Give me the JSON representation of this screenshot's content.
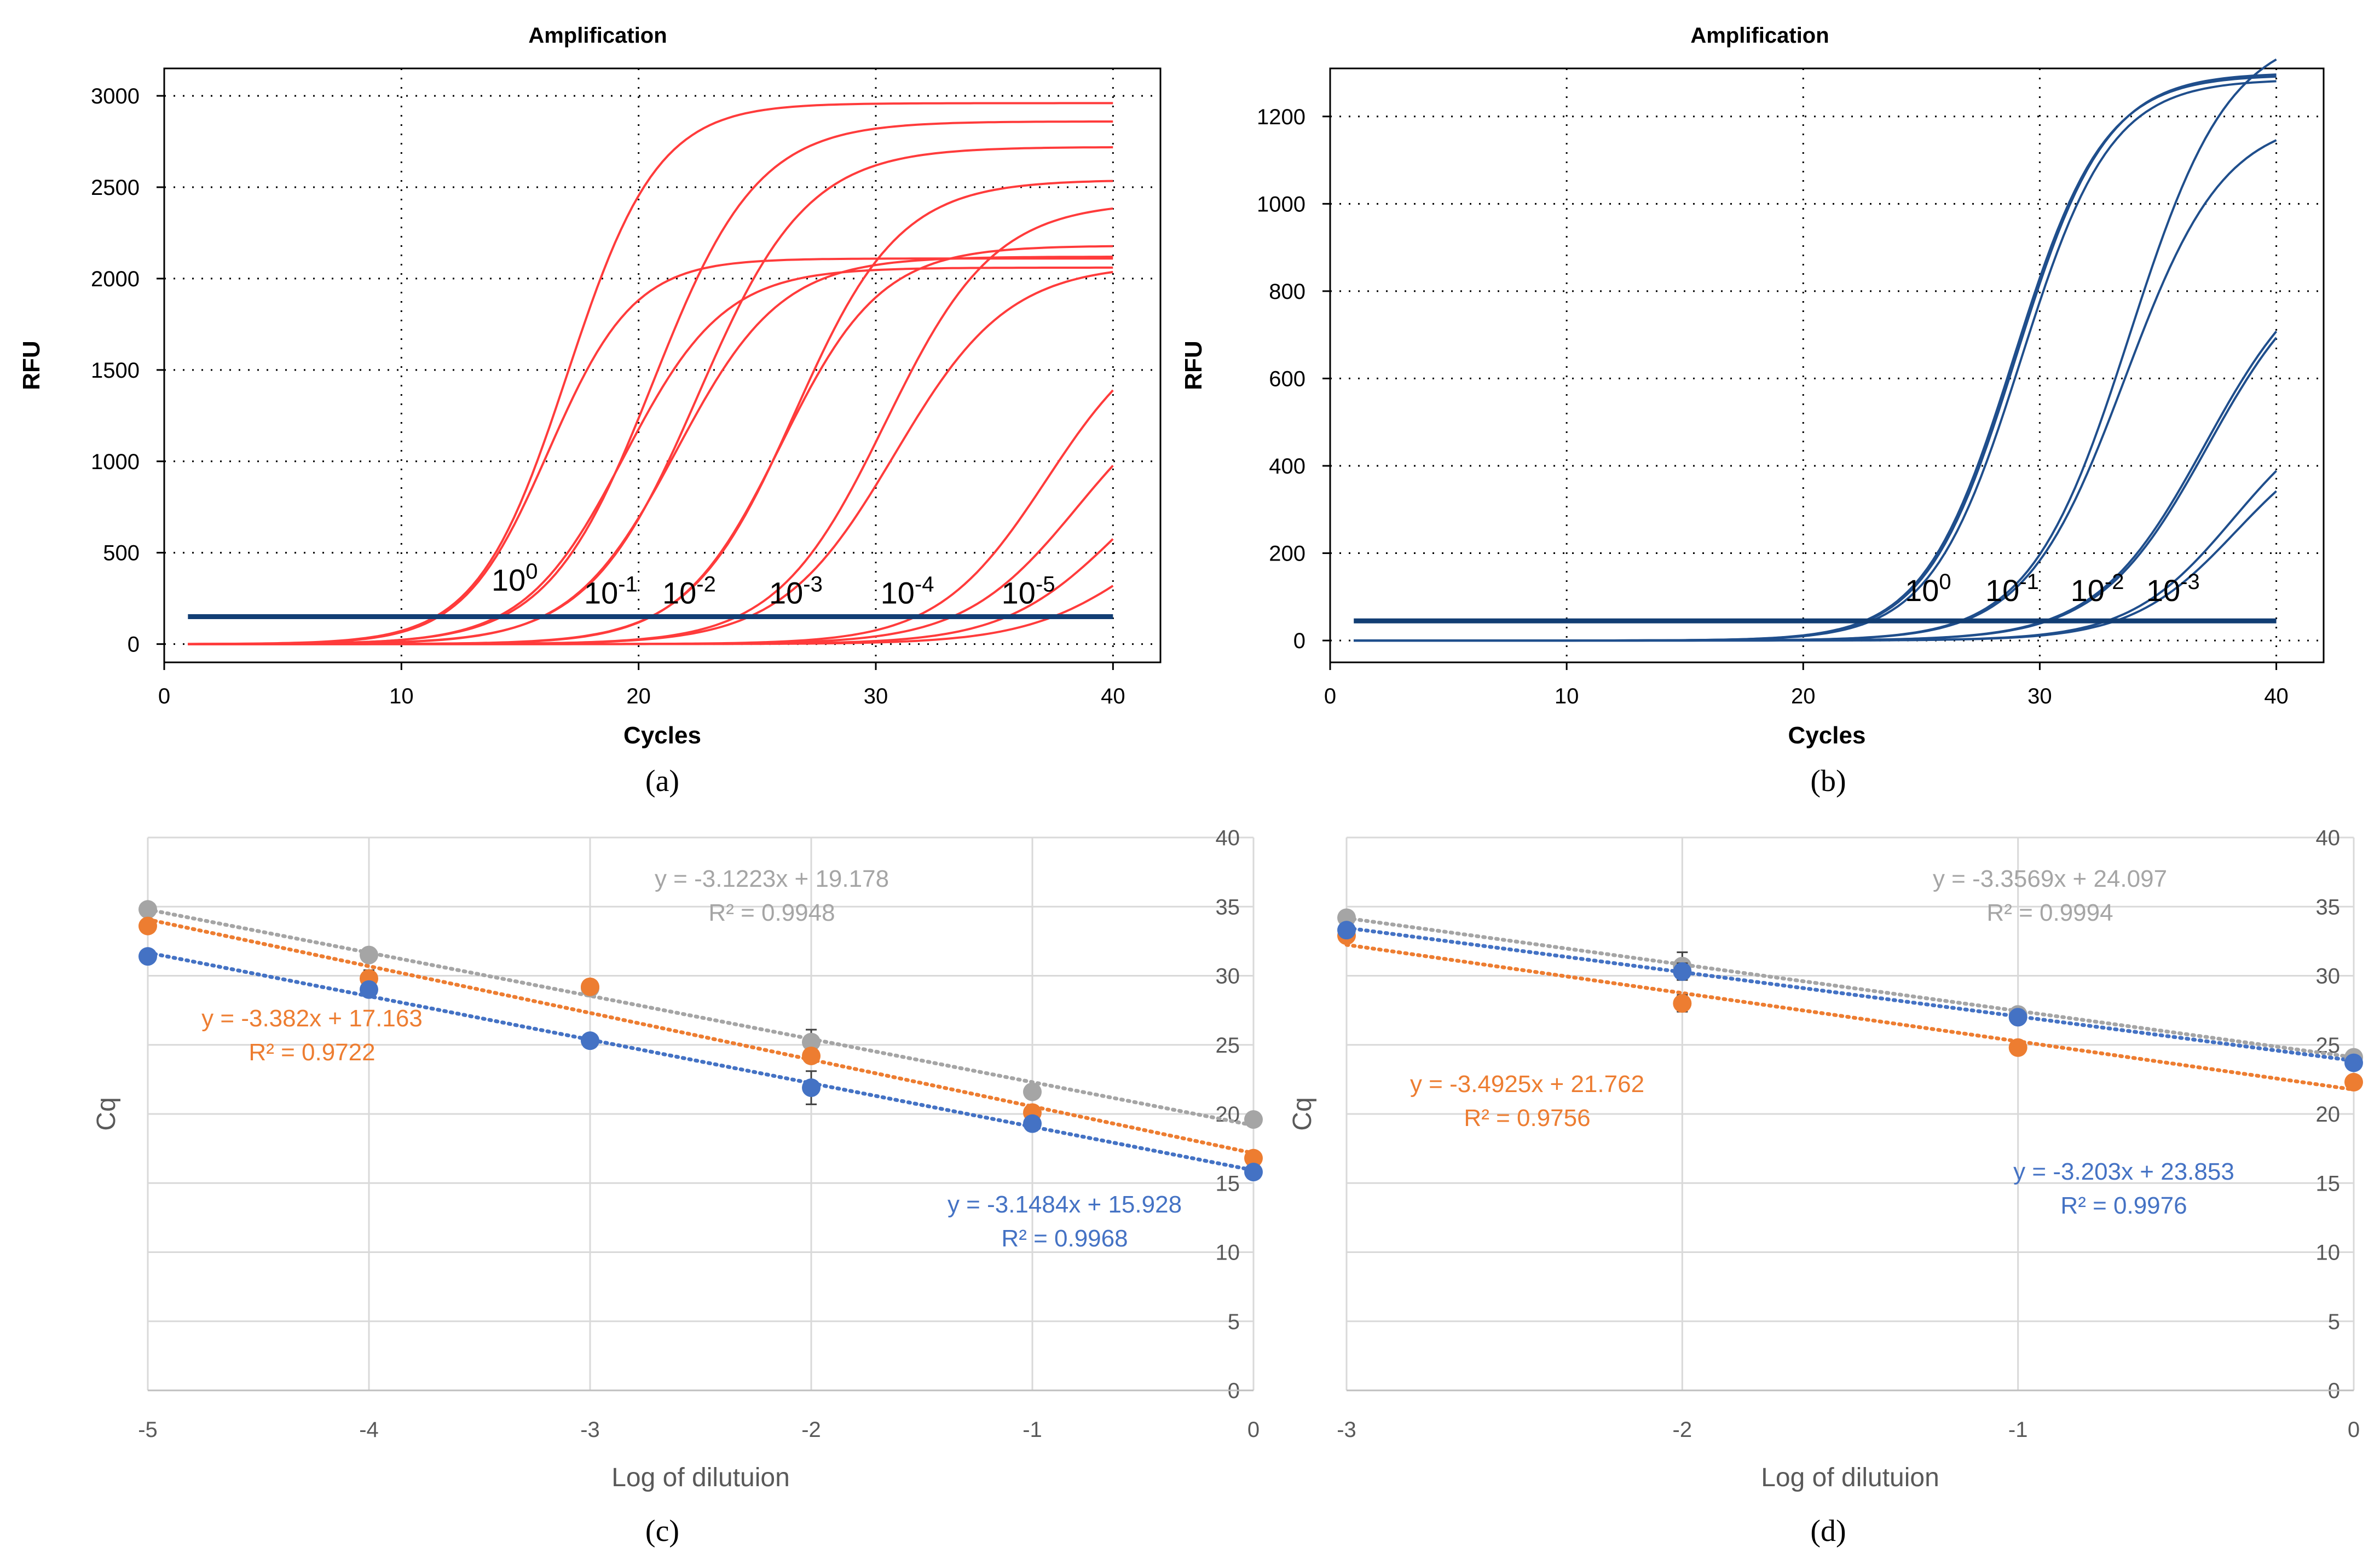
{
  "chart_data": [
    {
      "type": "line",
      "panel_label": "(a)",
      "title": "Amplification",
      "xlabel": "Cycles",
      "ylabel": "RFU",
      "xlim": [
        0,
        42
      ],
      "ylim": [
        -100,
        3150
      ],
      "xticks": [
        "0",
        "10",
        "20",
        "30",
        "40"
      ],
      "yticks": [
        "0",
        "500",
        "1000",
        "1500",
        "2000",
        "2500",
        "3000"
      ],
      "grid": "dotted",
      "color": "#ff3b3b",
      "threshold": {
        "value": 150,
        "color": "#123e74"
      },
      "series": [
        {
          "name": "10^0 rep1",
          "params": [
            2960,
            17.0,
            1.9
          ]
        },
        {
          "name": "10^0 rep2",
          "params": [
            2110,
            16.2,
            1.8
          ]
        },
        {
          "name": "10^-1 rep1",
          "params": [
            2860,
            20.6,
            2.2
          ]
        },
        {
          "name": "10^-1 rep2",
          "params": [
            2060,
            19.4,
            2.1
          ]
        },
        {
          "name": "10^-2 rep1",
          "params": [
            2720,
            22.5,
            2.3
          ]
        },
        {
          "name": "10^-2 rep2",
          "params": [
            2120,
            21.6,
            2.2
          ]
        },
        {
          "name": "10^-3 rep1",
          "params": [
            2540,
            26.6,
            2.2
          ]
        },
        {
          "name": "10^-3 rep2",
          "params": [
            2180,
            26.0,
            2.1
          ]
        },
        {
          "name": "10^-4 rep1",
          "params": [
            2420,
            30.4,
            2.3
          ]
        },
        {
          "name": "10^-4 rep2",
          "params": [
            2080,
            30.8,
            2.4
          ]
        },
        {
          "name": "10^-5 rep1",
          "params": [
            1800,
            37.2,
            2.3
          ]
        },
        {
          "name": "10^-5 rep2",
          "params": [
            1500,
            38.5,
            2.4
          ]
        },
        {
          "name": "10^-5 rep3",
          "params": [
            1200,
            40.2,
            2.4
          ]
        },
        {
          "name": "10^-5 rep4",
          "params": [
            900,
            41.5,
            2.5
          ]
        }
      ],
      "annotations": [
        {
          "base": "10",
          "exp": "0",
          "x": 13.8,
          "y": 220
        },
        {
          "base": "10",
          "exp": "-1",
          "x": 17.7,
          "y": 150
        },
        {
          "base": "10",
          "exp": "-2",
          "x": 21.0,
          "y": 150
        },
        {
          "base": "10",
          "exp": "-3",
          "x": 25.5,
          "y": 150
        },
        {
          "base": "10",
          "exp": "-4",
          "x": 30.2,
          "y": 150
        },
        {
          "base": "10",
          "exp": "-5",
          "x": 35.3,
          "y": 150
        }
      ]
    },
    {
      "type": "line",
      "panel_label": "(b)",
      "title": "Amplification",
      "xlabel": "Cycles",
      "ylabel": "RFU",
      "xlim": [
        0,
        42
      ],
      "ylim": [
        -50,
        1310
      ],
      "xticks": [
        "0",
        "10",
        "20",
        "30",
        "40"
      ],
      "yticks": [
        "0",
        "200",
        "400",
        "600",
        "800",
        "1000",
        "1200"
      ],
      "grid": "dotted",
      "color": "#1f4e8c",
      "threshold": {
        "value": 45,
        "color": "#123e74"
      },
      "series": [
        {
          "name": "10^0 rep1",
          "params": [
            1300,
            29.0,
            1.9
          ]
        },
        {
          "name": "10^0 rep2",
          "params": [
            1285,
            29.2,
            1.9
          ]
        },
        {
          "name": "10^0 rep3",
          "params": [
            1295,
            28.9,
            1.9
          ]
        },
        {
          "name": "10^-1 rep1",
          "params": [
            1400,
            33.8,
            2.1
          ]
        },
        {
          "name": "10^-1 rep2",
          "params": [
            1200,
            33.6,
            2.1
          ]
        },
        {
          "name": "10^-2 rep1",
          "params": [
            900,
            37.0,
            2.3
          ]
        },
        {
          "name": "10^-2 rep2",
          "params": [
            890,
            37.1,
            2.3
          ]
        },
        {
          "name": "10^-3 rep1",
          "params": [
            560,
            38.2,
            2.2
          ]
        },
        {
          "name": "10^-3 rep2",
          "params": [
            500,
            38.3,
            2.2
          ]
        }
      ],
      "annotations": [
        {
          "base": "10",
          "exp": "0",
          "x": 24.3,
          "y": 60
        },
        {
          "base": "10",
          "exp": "-1",
          "x": 27.7,
          "y": 60
        },
        {
          "base": "10",
          "exp": "-2",
          "x": 31.3,
          "y": 60
        },
        {
          "base": "10",
          "exp": "-3",
          "x": 34.5,
          "y": 60
        }
      ]
    },
    {
      "type": "scatter",
      "panel_label": "(c)",
      "xlabel": "Log of dilutuion",
      "ylabel": "Cq",
      "xlim": [
        -5,
        0
      ],
      "ylim": [
        0,
        40
      ],
      "xticks": [
        "-5",
        "-4",
        "-3",
        "-2",
        "-1",
        "0"
      ],
      "yticks": [
        "0",
        "5",
        "10",
        "15",
        "20",
        "25",
        "30",
        "35",
        "40"
      ],
      "grid": "light-solid",
      "series": [
        {
          "name": "grey",
          "color": "#a5a5a5",
          "x": [
            -5,
            -4,
            -3,
            -2,
            -1,
            0
          ],
          "y": [
            34.8,
            31.5,
            29.1,
            25.2,
            21.6,
            19.6
          ],
          "err": [
            0.3,
            0.3,
            0.5,
            0.9,
            0.3,
            0.2
          ],
          "fit": {
            "slope": -3.1223,
            "intercept": 19.178
          },
          "equation": "y = -3.1223x + 19.178",
          "r2": "R² = 0.9948"
        },
        {
          "name": "orange",
          "color": "#ed7d31",
          "x": [
            -5,
            -4,
            -3,
            -2,
            -1,
            0
          ],
          "y": [
            33.6,
            29.8,
            29.2,
            24.2,
            20.1,
            16.8
          ],
          "err": [
            0.2,
            0.6,
            0.2,
            0.5,
            0.3,
            0.2
          ],
          "fit": {
            "slope": -3.382,
            "intercept": 17.163
          },
          "equation": "y = -3.382x + 17.163",
          "r2": "R² = 0.9722"
        },
        {
          "name": "blue",
          "color": "#4472c4",
          "x": [
            -5,
            -4,
            -3,
            -2,
            -1,
            0
          ],
          "y": [
            31.4,
            29.0,
            25.3,
            21.9,
            19.3,
            15.8
          ],
          "err": [
            0.2,
            0.3,
            0.3,
            1.2,
            0.5,
            0.2
          ],
          "fit": {
            "slope": -3.1484,
            "intercept": 15.928
          },
          "equation": "y = -3.1484x + 15.928",
          "r2": "R² = 0.9968"
        }
      ]
    },
    {
      "type": "scatter",
      "panel_label": "(d)",
      "xlabel": "Log of dilutuion",
      "ylabel": "Cq",
      "xlim": [
        -3,
        0
      ],
      "ylim": [
        0,
        40
      ],
      "xticks": [
        "-3",
        "-2",
        "-1",
        "0"
      ],
      "yticks": [
        "0",
        "5",
        "10",
        "15",
        "20",
        "25",
        "30",
        "35",
        "40"
      ],
      "grid": "light-solid",
      "series": [
        {
          "name": "grey",
          "color": "#a5a5a5",
          "x": [
            -3,
            -2,
            -1,
            0
          ],
          "y": [
            34.2,
            30.7,
            27.2,
            24.1
          ],
          "err": [
            0.2,
            1.0,
            0.4,
            0.2
          ],
          "fit": {
            "slope": -3.3569,
            "intercept": 24.097
          },
          "equation": "y = -3.3569x + 24.097",
          "r2": "R² = 0.9994"
        },
        {
          "name": "orange",
          "color": "#ed7d31",
          "x": [
            -3,
            -2,
            -1,
            0
          ],
          "y": [
            32.9,
            28.0,
            24.8,
            22.3
          ],
          "err": [
            0.2,
            0.6,
            0.2,
            0.2
          ],
          "fit": {
            "slope": -3.4925,
            "intercept": 21.762
          },
          "equation": "y = -3.4925x + 21.762",
          "r2": "R² = 0.9756"
        },
        {
          "name": "blue",
          "color": "#4472c4",
          "x": [
            -3,
            -2,
            -1,
            0
          ],
          "y": [
            33.3,
            30.3,
            27.0,
            23.7
          ],
          "err": [
            0.2,
            0.6,
            0.3,
            0.2
          ],
          "fit": {
            "slope": -3.203,
            "intercept": 23.853
          },
          "equation": "y = -3.203x + 23.853",
          "r2": "R² = 0.9976"
        }
      ]
    }
  ]
}
